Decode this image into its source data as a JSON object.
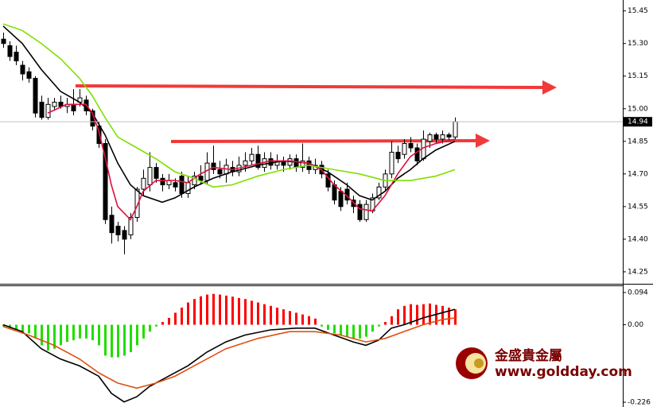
{
  "chart_data": [
    {
      "type": "candlestick",
      "open": [
        15.32,
        15.29,
        15.26,
        15.2,
        15.17,
        15.14,
        15.03,
        14.96,
        15.01,
        15.03,
        15.01,
        15.02,
        15.03,
        15.04,
        14.99,
        14.92,
        14.84,
        14.51,
        14.46,
        14.44,
        14.42,
        14.5,
        14.63,
        14.65,
        14.73,
        14.68,
        14.65,
        14.66,
        14.69,
        14.61,
        14.65,
        14.69,
        14.67,
        14.75,
        14.72,
        14.7,
        14.73,
        14.71,
        14.74,
        14.76,
        14.79,
        14.73,
        14.77,
        14.74,
        14.76,
        14.74,
        14.77,
        14.73,
        14.76,
        14.72,
        14.74,
        14.7,
        14.65,
        14.62,
        14.63,
        14.58,
        14.56,
        14.49,
        14.53,
        14.59,
        14.64,
        14.7,
        14.8,
        14.79,
        14.84,
        14.82,
        14.77,
        14.85,
        14.88,
        14.86,
        14.88,
        14.87
      ],
      "high": [
        15.35,
        15.31,
        15.29,
        15.22,
        15.19,
        15.15,
        15.06,
        15.05,
        15.05,
        15.06,
        15.05,
        15.09,
        15.09,
        15.06,
        15.0,
        14.94,
        14.86,
        14.55,
        14.48,
        14.46,
        14.52,
        14.64,
        14.72,
        14.8,
        14.75,
        14.7,
        14.7,
        14.68,
        14.71,
        14.69,
        14.71,
        14.74,
        14.8,
        14.83,
        14.76,
        14.77,
        14.76,
        14.78,
        14.8,
        14.82,
        14.83,
        14.8,
        14.8,
        14.79,
        14.78,
        14.79,
        14.79,
        14.84,
        14.78,
        14.77,
        14.76,
        14.72,
        14.67,
        14.64,
        14.66,
        14.6,
        14.58,
        14.58,
        14.61,
        14.66,
        14.72,
        14.85,
        14.83,
        14.86,
        14.87,
        14.84,
        14.9,
        14.89,
        14.89,
        14.9,
        14.89,
        14.96
      ],
      "low": [
        15.28,
        15.22,
        15.2,
        15.13,
        15.12,
        14.96,
        14.95,
        14.95,
        14.99,
        15.0,
        14.98,
        14.97,
        15.01,
        14.97,
        14.9,
        14.82,
        14.47,
        14.38,
        14.39,
        14.33,
        14.4,
        14.48,
        14.6,
        14.62,
        14.66,
        14.62,
        14.63,
        14.62,
        14.59,
        14.59,
        14.63,
        14.65,
        14.65,
        14.7,
        14.68,
        14.66,
        14.69,
        14.69,
        14.71,
        14.74,
        14.72,
        14.71,
        14.72,
        14.72,
        14.71,
        14.72,
        14.71,
        14.71,
        14.7,
        14.7,
        14.68,
        14.62,
        14.56,
        14.53,
        14.56,
        14.52,
        14.48,
        14.48,
        14.52,
        14.58,
        14.62,
        14.68,
        14.75,
        14.77,
        14.8,
        14.74,
        14.76,
        14.82,
        14.84,
        14.84,
        14.85,
        14.86
      ],
      "close": [
        15.3,
        15.24,
        15.22,
        15.16,
        15.14,
        14.98,
        14.96,
        15.02,
        15.03,
        15.01,
        15.02,
        14.99,
        15.05,
        14.99,
        14.92,
        14.84,
        14.49,
        14.43,
        14.42,
        14.4,
        14.5,
        14.63,
        14.68,
        14.73,
        14.68,
        14.65,
        14.67,
        14.64,
        14.61,
        14.66,
        14.69,
        14.67,
        14.75,
        14.72,
        14.7,
        14.74,
        14.71,
        14.74,
        14.76,
        14.79,
        14.73,
        14.77,
        14.74,
        14.76,
        14.74,
        14.77,
        14.73,
        14.76,
        14.72,
        14.74,
        14.7,
        14.64,
        14.58,
        14.55,
        14.58,
        14.55,
        14.49,
        14.56,
        14.59,
        14.64,
        14.7,
        14.8,
        14.77,
        14.84,
        14.82,
        14.76,
        14.86,
        14.88,
        14.86,
        14.88,
        14.87,
        14.94
      ],
      "lines": [
        {
          "color": "#000000",
          "x": [
            0,
            3,
            6,
            9,
            12,
            14,
            16,
            18,
            20,
            22,
            25,
            27,
            30,
            33,
            36,
            40,
            44,
            48,
            51,
            54,
            56,
            58,
            60,
            62,
            64,
            66,
            68,
            71
          ],
          "values": [
            15.38,
            15.3,
            15.18,
            15.08,
            15.03,
            14.98,
            14.88,
            14.75,
            14.65,
            14.6,
            14.57,
            14.59,
            14.64,
            14.68,
            14.71,
            14.74,
            14.76,
            14.75,
            14.71,
            14.65,
            14.6,
            14.58,
            14.62,
            14.68,
            14.72,
            14.77,
            14.81,
            14.85
          ]
        },
        {
          "color": "#e0103c",
          "x": [
            7,
            10,
            13,
            14,
            15,
            16,
            17,
            18,
            20,
            21,
            22,
            24,
            27,
            29,
            31,
            33,
            36,
            39,
            42,
            45,
            48,
            50,
            52,
            54,
            56,
            58,
            60,
            62,
            64,
            66,
            68,
            71
          ],
          "values": [
            14.98,
            15.02,
            15.02,
            14.98,
            14.9,
            14.78,
            14.65,
            14.55,
            14.49,
            14.55,
            14.62,
            14.67,
            14.67,
            14.66,
            14.7,
            14.73,
            14.72,
            14.74,
            14.76,
            14.76,
            14.75,
            14.72,
            14.65,
            14.6,
            14.54,
            14.53,
            14.6,
            14.7,
            14.78,
            14.82,
            14.84,
            14.86
          ]
        },
        {
          "color": "#7fe000",
          "x": [
            0,
            3,
            6,
            9,
            12,
            14,
            16,
            18,
            21,
            24,
            27,
            30,
            33,
            36,
            40,
            44,
            48,
            52,
            56,
            60,
            64,
            68,
            71
          ],
          "values": [
            15.39,
            15.36,
            15.3,
            15.23,
            15.14,
            15.06,
            14.96,
            14.87,
            14.82,
            14.77,
            14.71,
            14.68,
            14.64,
            14.65,
            14.69,
            14.72,
            14.74,
            14.72,
            14.7,
            14.67,
            14.67,
            14.69,
            14.72
          ]
        }
      ],
      "last_price": 14.94,
      "ylim": [
        14.2,
        15.5
      ],
      "yticks": [
        15.45,
        {
          "value": 15.3,
          "label": "15.30"
        },
        15.15,
        {
          "value": 15.0,
          "label": "15.00"
        },
        14.85,
        {
          "value": 14.7,
          "label": "14.70"
        },
        14.55,
        {
          "value": 14.4,
          "label": "14.40"
        },
        14.25
      ]
    },
    {
      "type": "macd",
      "values": [
        -0.005,
        -0.01,
        -0.015,
        -0.02,
        -0.025,
        -0.04,
        -0.06,
        -0.075,
        -0.07,
        -0.06,
        -0.05,
        -0.045,
        -0.04,
        -0.04,
        -0.045,
        -0.06,
        -0.09,
        -0.095,
        -0.095,
        -0.09,
        -0.08,
        -0.06,
        -0.04,
        -0.02,
        -0.005,
        0.008,
        0.02,
        0.035,
        0.05,
        0.065,
        0.075,
        0.083,
        0.088,
        0.09,
        0.088,
        0.085,
        0.082,
        0.078,
        0.075,
        0.07,
        0.065,
        0.06,
        0.055,
        0.05,
        0.045,
        0.04,
        0.035,
        0.03,
        0.025,
        0.018,
        -0.005,
        -0.015,
        -0.025,
        -0.03,
        -0.035,
        -0.04,
        -0.04,
        -0.035,
        -0.02,
        -0.005,
        0.008,
        0.025,
        0.045,
        0.055,
        0.06,
        0.058,
        0.06,
        0.062,
        0.058,
        0.055,
        0.05,
        0.045
      ],
      "up_color": "#ff0000",
      "down_color": "#22dd00",
      "lines": [
        {
          "color": "#000000",
          "x": [
            0,
            3,
            6,
            9,
            12,
            15,
            17,
            19,
            21,
            23,
            26,
            29,
            32,
            35,
            38,
            42,
            46,
            49,
            52,
            55,
            57,
            59,
            61,
            63,
            66,
            69,
            71
          ],
          "values": [
            0.0,
            -0.02,
            -0.07,
            -0.1,
            -0.12,
            -0.15,
            -0.2,
            -0.225,
            -0.21,
            -0.18,
            -0.15,
            -0.12,
            -0.08,
            -0.05,
            -0.03,
            -0.015,
            -0.01,
            -0.01,
            -0.03,
            -0.05,
            -0.06,
            -0.045,
            -0.01,
            0.0,
            0.02,
            0.035,
            0.045
          ]
        },
        {
          "color": "#e05010",
          "x": [
            0,
            4,
            8,
            12,
            15,
            18,
            21,
            24,
            27,
            31,
            35,
            40,
            45,
            49,
            53,
            57,
            60,
            63,
            66,
            69,
            71
          ],
          "values": [
            -0.005,
            -0.03,
            -0.06,
            -0.1,
            -0.14,
            -0.17,
            -0.185,
            -0.17,
            -0.15,
            -0.11,
            -0.07,
            -0.04,
            -0.02,
            -0.02,
            -0.03,
            -0.05,
            -0.04,
            -0.02,
            0.0,
            0.015,
            0.02
          ]
        }
      ],
      "ylim": [
        -0.226,
        0.094
      ],
      "yticks": [
        0.094,
        {
          "value": 0,
          "label": "0.00"
        },
        -0.226
      ]
    },
    {
      "type": "watermark",
      "title": "金盛貴金屬",
      "subtitle": "www.goldday.com"
    }
  ]
}
